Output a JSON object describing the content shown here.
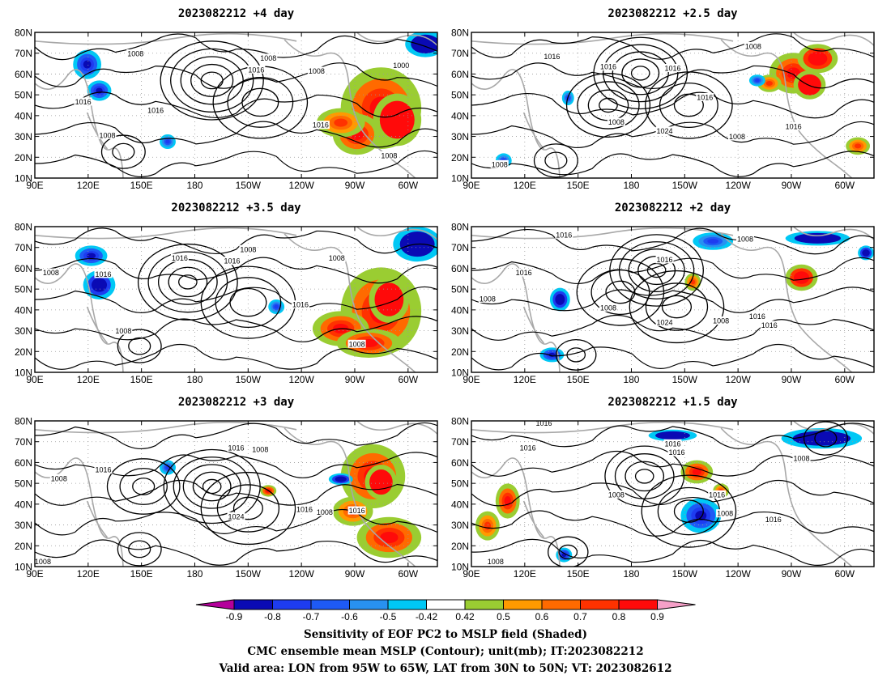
{
  "panels": [
    {
      "title": "2023082212 +4 day",
      "contour_labels": [
        "1008",
        "1008",
        "1016",
        "1008",
        "1000",
        "1016",
        "1016",
        "1008",
        "1016",
        "1008"
      ]
    },
    {
      "title": "2023082212 +2.5 day",
      "contour_labels": [
        "1008",
        "1016",
        "1016",
        "1016",
        "1016",
        "1008",
        "1024",
        "1008",
        "1016",
        "1008"
      ]
    },
    {
      "title": "2023082212 +3.5 day",
      "contour_labels": [
        "1008",
        "1016",
        "1016",
        "1008",
        "1008",
        "1016",
        "1008",
        "1008",
        "1016"
      ]
    },
    {
      "title": "2023082212 +2 day",
      "contour_labels": [
        "1016",
        "1008",
        "1016",
        "1016",
        "1008",
        "1024",
        "1008",
        "1016",
        "1016",
        "1008"
      ]
    },
    {
      "title": "2023082212 +3 day",
      "contour_labels": [
        "1008",
        "1016",
        "1008",
        "1016",
        "1024",
        "1016",
        "1016",
        "1008",
        "1008"
      ]
    },
    {
      "title": "2023082212 +1.5 day",
      "contour_labels": [
        "1016",
        "1016",
        "1016",
        "1016",
        "1008",
        "1016",
        "1008",
        "1016",
        "1008",
        "1008"
      ]
    }
  ],
  "axes": {
    "lon_ticks": [
      "90E",
      "120E",
      "150E",
      "180",
      "150W",
      "120W",
      "90W",
      "60W"
    ],
    "lat_ticks": [
      "80N",
      "70N",
      "60N",
      "50N",
      "40N",
      "30N",
      "20N",
      "10N"
    ]
  },
  "colorbar": {
    "labels": [
      "-0.9",
      "-0.8",
      "-0.7",
      "-0.6",
      "-0.5",
      "-0.42",
      "0.42",
      "0.5",
      "0.6",
      "0.7",
      "0.8",
      "0.9"
    ],
    "colors": [
      "#b4009b",
      "#0a0ab4",
      "#1e3cf0",
      "#1e5af5",
      "#2891f0",
      "#00c8f5",
      "#ffffff",
      "#9acd32",
      "#ff9a00",
      "#ff6a00",
      "#ff3200",
      "#ff0a0a",
      "#f5a0c8"
    ]
  },
  "caption": {
    "line1": "Sensitivity of EOF PC2 to MSLP field (Shaded)",
    "line2": "CMC ensemble mean MSLP (Contour); unit(mb); IT:2023082212",
    "line3": "Valid area: LON from 95W to 65W, LAT from 30N to 50N; VT: 2023082612"
  }
}
